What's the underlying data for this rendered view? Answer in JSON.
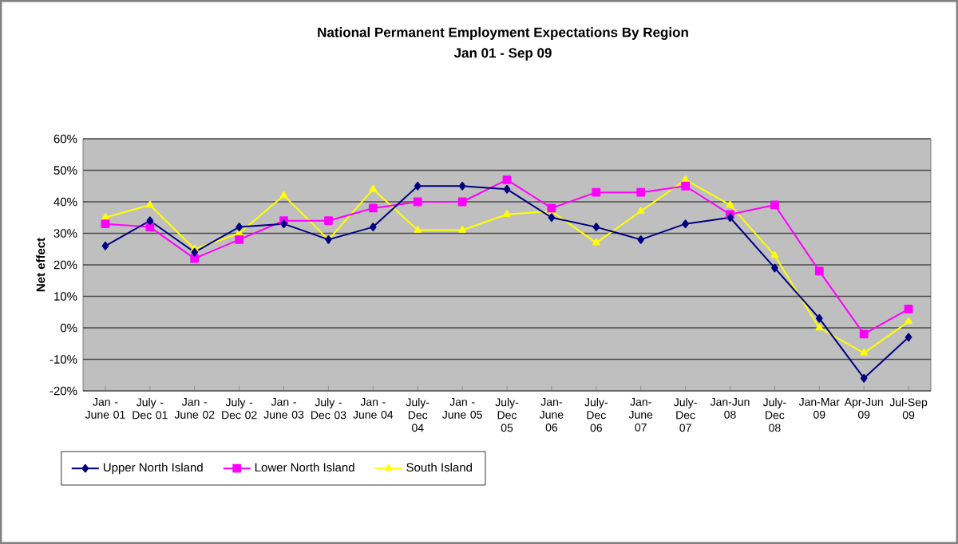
{
  "chart_data": {
    "type": "line",
    "title": "National Permanent Employment Expectations By Region",
    "subtitle": "Jan 01 - Sep 09",
    "ylabel": "Net effect",
    "categories": [
      "Jan - June 01",
      "July - Dec 01",
      "Jan - June 02",
      "July - Dec 02",
      "Jan - June 03",
      "July - Dec 03",
      "Jan - June 04",
      "July-Dec 04",
      "Jan - June 05",
      "July-Dec 05",
      "Jan-June 06",
      "July-Dec 06",
      "Jan-June 07",
      "July-Dec 07",
      "Jan-Jun 08",
      "July-Dec 08",
      "Jan-Mar 09",
      "Apr-Jun 09",
      "Jul-Sep 09"
    ],
    "series": [
      {
        "name": "Upper North Island",
        "color": "#000080",
        "marker": "diamond",
        "values": [
          26,
          34,
          24,
          32,
          33,
          28,
          32,
          45,
          45,
          44,
          35,
          32,
          28,
          33,
          35,
          19,
          3,
          -16,
          -3
        ]
      },
      {
        "name": "Lower North Island",
        "color": "#ff00ff",
        "marker": "square",
        "values": [
          33,
          32,
          22,
          28,
          34,
          34,
          38,
          40,
          40,
          47,
          38,
          43,
          43,
          45,
          36,
          39,
          18,
          -2,
          6
        ]
      },
      {
        "name": "South Island",
        "color": "#ffff00",
        "marker": "triangle",
        "values": [
          35,
          39,
          25,
          30,
          42,
          28,
          44,
          31,
          31,
          36,
          37,
          27,
          37,
          47,
          39,
          23,
          0,
          -8,
          2
        ]
      }
    ],
    "ylim": [
      -20,
      60
    ],
    "yticks": [
      {
        "value": -20,
        "label": "-20%"
      },
      {
        "value": -10,
        "label": "-10%"
      },
      {
        "value": 0,
        "label": "0%"
      },
      {
        "value": 10,
        "label": "10%"
      },
      {
        "value": 20,
        "label": "20%"
      },
      {
        "value": 30,
        "label": "30%"
      },
      {
        "value": 40,
        "label": "40%"
      },
      {
        "value": 50,
        "label": "50%"
      },
      {
        "value": 60,
        "label": "60%"
      }
    ],
    "grid": "y",
    "legend": "bottom",
    "line_style": "solid"
  }
}
